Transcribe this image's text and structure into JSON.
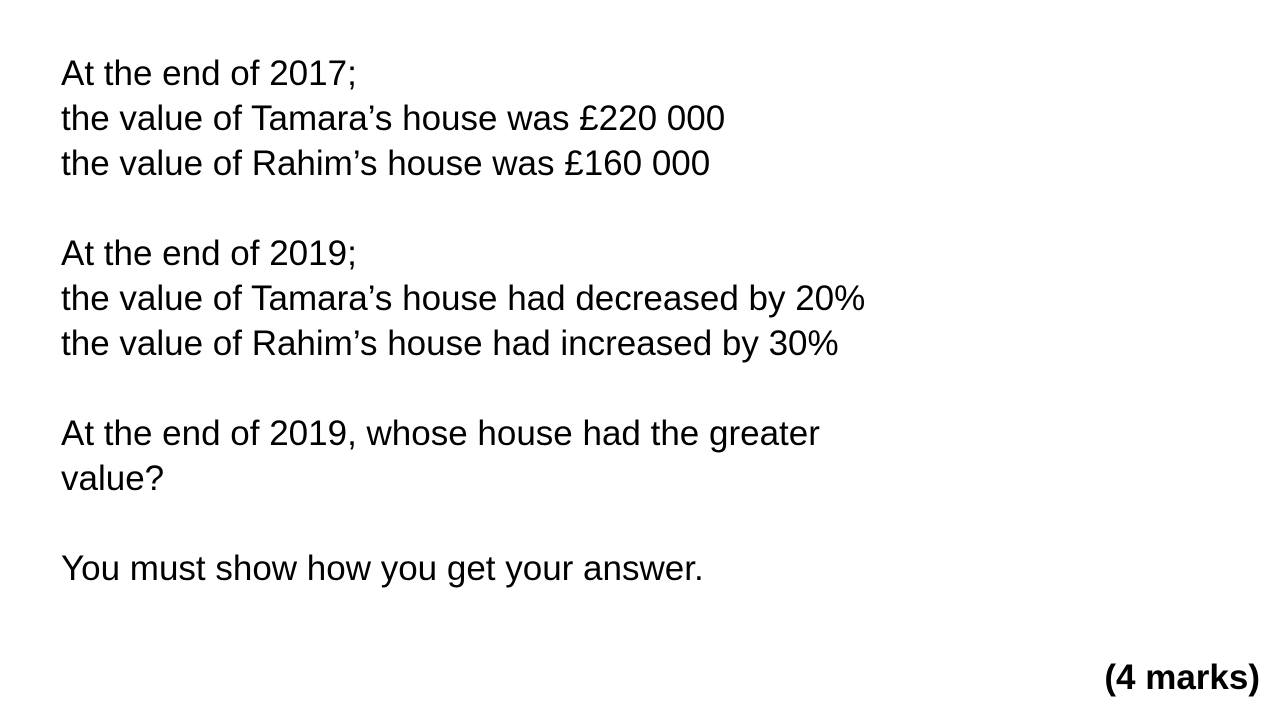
{
  "question": {
    "block_2017": {
      "heading": "At the end of 2017;",
      "line_tamara": "the value of Tamara’s house was £220 000",
      "line_rahim": "the value of Rahim’s house was £160 000"
    },
    "block_2019": {
      "heading": "At the end of 2019;",
      "line_tamara": "the value of Tamara’s house had decreased by 20%",
      "line_rahim": "the value of Rahim’s house had increased by 30%"
    },
    "prompt": "At the end of 2019, whose house had the greater value?",
    "instruction": "You must show how you get your answer."
  },
  "marks": "(4 marks)"
}
